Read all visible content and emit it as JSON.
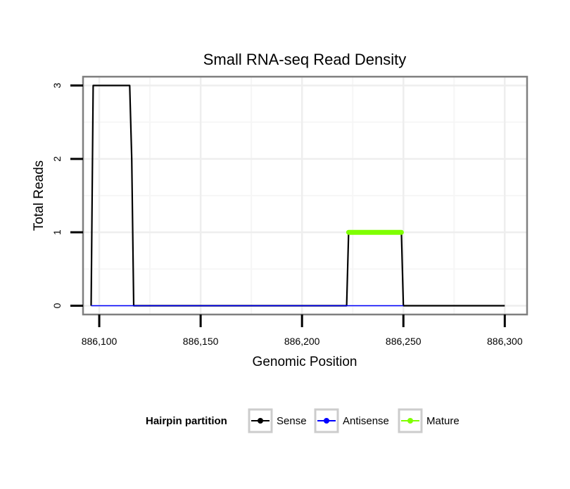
{
  "chart_data": {
    "type": "line",
    "title": "Small RNA-seq Read Density",
    "xlabel": "Genomic Position",
    "ylabel": "Total Reads",
    "xlim": [
      886092,
      886311
    ],
    "ylim": [
      -0.12,
      3.12
    ],
    "x_ticks": [
      886100,
      886150,
      886200,
      886250,
      886300
    ],
    "x_tick_labels": [
      "886,100",
      "886,150",
      "886,200",
      "886,250",
      "886,300"
    ],
    "y_ticks": [
      0,
      1,
      2,
      3
    ],
    "y_tick_labels": [
      "0",
      "1",
      "2",
      "3"
    ],
    "grid": true,
    "legend": {
      "title": "Hairpin partition",
      "position": "bottom",
      "entries": [
        "Sense",
        "Antisense",
        "Mature"
      ]
    },
    "series": [
      {
        "name": "Sense",
        "color": "#000000",
        "x": [
          886096,
          886097,
          886115,
          886116,
          886117,
          886222,
          886223,
          886249,
          886250,
          886300
        ],
        "y": [
          0,
          3,
          3,
          2,
          0,
          0,
          1,
          1,
          0,
          0
        ]
      },
      {
        "name": "Antisense",
        "color": "#0000ff",
        "x": [
          886096,
          886117,
          886222,
          886250
        ],
        "y": [
          0,
          0,
          0,
          0
        ]
      },
      {
        "name": "Mature",
        "color": "#7fff00",
        "x": [
          886223,
          886249
        ],
        "y": [
          1,
          1
        ]
      }
    ]
  }
}
